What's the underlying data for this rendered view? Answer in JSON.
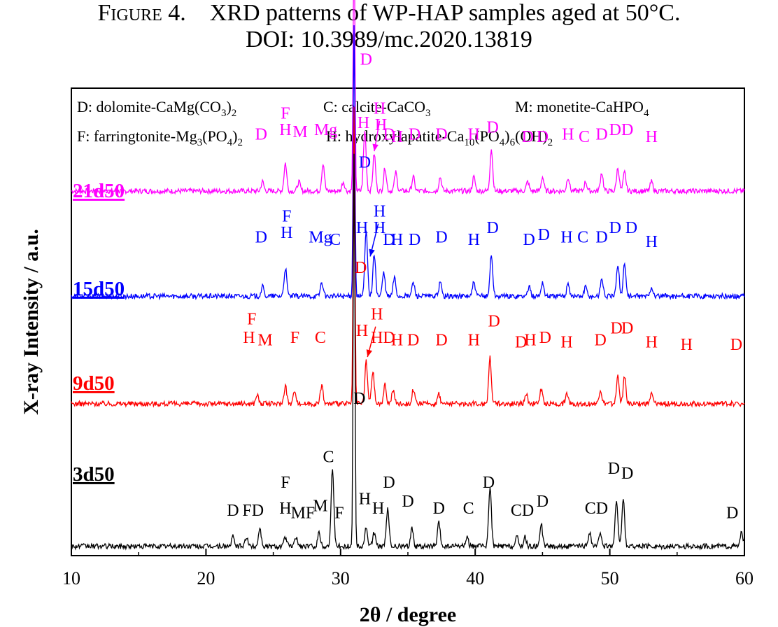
{
  "caption": {
    "figure_label": "Figure 4.",
    "figure_text": "XRD patterns of WP-HAP samples aged at 50°C.",
    "doi": "DOI: 10.3989/mc.2020.13819"
  },
  "chart_data": {
    "type": "line",
    "title": "",
    "xlabel": "2θ / degree",
    "ylabel": "X-ray Intensity / a.u.",
    "xlim": [
      10,
      60
    ],
    "xticks": [
      "10",
      "20",
      "30",
      "40",
      "50",
      "60"
    ],
    "grid": false,
    "legend_lines": [
      [
        {
          "text": "D: dolomite-CaMg(CO",
          "sub": "3",
          "after": ")",
          "sub2": "2"
        },
        {
          "text": "C: calcite-CaCO",
          "sub": "3"
        },
        {
          "text": "M: monetite-CaHPO",
          "sub": "4"
        }
      ],
      [
        {
          "text": "F: farringtonite-Mg",
          "sub": "3",
          "after": "(PO",
          "sub2": "4",
          "after2": ")",
          "sub3": "2"
        },
        {
          "text": "H: hydroxylapatite-Ca",
          "sub": "10",
          "after": "(PO",
          "sub2": "4",
          "after2": ")",
          "sub3": "6",
          "after3": "(OH)",
          "sub4": "2"
        }
      ]
    ],
    "series": [
      {
        "name": "21d50",
        "color": "#ff00ff",
        "baseline": 0.78,
        "peaks": [
          [
            24.2,
            0.02
          ],
          [
            25.9,
            0.06
          ],
          [
            26.9,
            0.02
          ],
          [
            28.7,
            0.06
          ],
          [
            30.2,
            0.02
          ],
          [
            31.0,
            0.55
          ],
          [
            31.8,
            0.13
          ],
          [
            32.5,
            0.08
          ],
          [
            33.3,
            0.05
          ],
          [
            34.1,
            0.04
          ],
          [
            35.4,
            0.03
          ],
          [
            37.4,
            0.03
          ],
          [
            39.9,
            0.03
          ],
          [
            41.2,
            0.09
          ],
          [
            43.9,
            0.02
          ],
          [
            45.0,
            0.03
          ],
          [
            46.9,
            0.03
          ],
          [
            48.2,
            0.02
          ],
          [
            49.4,
            0.04
          ],
          [
            50.6,
            0.05
          ],
          [
            51.1,
            0.04
          ],
          [
            53.1,
            0.02
          ]
        ],
        "labels": [
          {
            "t": "D",
            "x": 24.1,
            "y": 0.89
          },
          {
            "t": "F",
            "x": 25.9,
            "y": 0.935
          },
          {
            "t": "H",
            "x": 25.9,
            "y": 0.9
          },
          {
            "t": "M",
            "x": 27.0,
            "y": 0.895
          },
          {
            "t": "Mg",
            "x": 28.9,
            "y": 0.9
          },
          {
            "t": "D",
            "x": 31.9,
            "y": 1.05
          },
          {
            "t": "H",
            "x": 32.9,
            "y": 0.945
          },
          {
            "t": "H",
            "x": 31.7,
            "y": 0.915
          },
          {
            "t": "H",
            "x": 33.0,
            "y": 0.91
          },
          {
            "t": "D",
            "x": 33.6,
            "y": 0.89
          },
          {
            "t": "H",
            "x": 34.2,
            "y": 0.885
          },
          {
            "t": "D",
            "x": 35.5,
            "y": 0.89
          },
          {
            "t": "D",
            "x": 37.5,
            "y": 0.89
          },
          {
            "t": "H",
            "x": 39.9,
            "y": 0.89
          },
          {
            "t": "D",
            "x": 41.3,
            "y": 0.905
          },
          {
            "t": "D",
            "x": 43.9,
            "y": 0.885
          },
          {
            "t": "D",
            "x": 45.0,
            "y": 0.885
          },
          {
            "t": "H",
            "x": 46.9,
            "y": 0.89
          },
          {
            "t": "C",
            "x": 48.1,
            "y": 0.885
          },
          {
            "t": "D",
            "x": 49.4,
            "y": 0.89
          },
          {
            "t": "D",
            "x": 50.4,
            "y": 0.9
          },
          {
            "t": "D",
            "x": 51.3,
            "y": 0.9
          },
          {
            "t": "H",
            "x": 53.1,
            "y": 0.885
          }
        ],
        "arrow": {
          "x1": 32.9,
          "y1": 0.93,
          "x2": 32.5,
          "y2": 0.865
        }
      },
      {
        "name": "15d50",
        "color": "#0000ff",
        "baseline": 0.555,
        "peaks": [
          [
            24.2,
            0.02
          ],
          [
            25.9,
            0.06
          ],
          [
            28.6,
            0.03
          ],
          [
            31.0,
            0.58
          ],
          [
            31.9,
            0.14
          ],
          [
            32.5,
            0.09
          ],
          [
            33.2,
            0.05
          ],
          [
            34.0,
            0.04
          ],
          [
            35.4,
            0.03
          ],
          [
            37.4,
            0.03
          ],
          [
            39.9,
            0.03
          ],
          [
            41.2,
            0.09
          ],
          [
            44.0,
            0.02
          ],
          [
            45.0,
            0.03
          ],
          [
            46.9,
            0.03
          ],
          [
            48.2,
            0.02
          ],
          [
            49.4,
            0.04
          ],
          [
            50.6,
            0.07
          ],
          [
            51.1,
            0.07
          ],
          [
            53.1,
            0.02
          ]
        ],
        "labels": [
          {
            "t": "D",
            "x": 24.1,
            "y": 0.67
          },
          {
            "t": "F",
            "x": 26.0,
            "y": 0.715
          },
          {
            "t": "H",
            "x": 26.0,
            "y": 0.68
          },
          {
            "t": "Mg",
            "x": 28.5,
            "y": 0.67
          },
          {
            "t": "C",
            "x": 29.6,
            "y": 0.665
          },
          {
            "t": "D",
            "x": 31.8,
            "y": 0.83
          },
          {
            "t": "H",
            "x": 32.9,
            "y": 0.725
          },
          {
            "t": "H",
            "x": 31.6,
            "y": 0.69
          },
          {
            "t": "H",
            "x": 32.9,
            "y": 0.69
          },
          {
            "t": "D",
            "x": 33.6,
            "y": 0.665
          },
          {
            "t": "H",
            "x": 34.2,
            "y": 0.665
          },
          {
            "t": "D",
            "x": 35.5,
            "y": 0.665
          },
          {
            "t": "D",
            "x": 37.5,
            "y": 0.67
          },
          {
            "t": "H",
            "x": 39.9,
            "y": 0.665
          },
          {
            "t": "D",
            "x": 41.3,
            "y": 0.69
          },
          {
            "t": "D",
            "x": 44.0,
            "y": 0.665
          },
          {
            "t": "D",
            "x": 45.1,
            "y": 0.675
          },
          {
            "t": "H",
            "x": 46.8,
            "y": 0.67
          },
          {
            "t": "C",
            "x": 48.0,
            "y": 0.67
          },
          {
            "t": "D",
            "x": 49.4,
            "y": 0.67
          },
          {
            "t": "D",
            "x": 50.4,
            "y": 0.69
          },
          {
            "t": "D",
            "x": 51.6,
            "y": 0.69
          },
          {
            "t": "H",
            "x": 53.1,
            "y": 0.66
          }
        ],
        "arrow": {
          "x1": 32.8,
          "y1": 0.71,
          "x2": 32.2,
          "y2": 0.64
        }
      },
      {
        "name": "9d50",
        "color": "#ff0000",
        "baseline": 0.325,
        "peaks": [
          [
            23.8,
            0.02
          ],
          [
            25.9,
            0.04
          ],
          [
            26.6,
            0.03
          ],
          [
            28.6,
            0.04
          ],
          [
            31.0,
            0.63
          ],
          [
            31.9,
            0.09
          ],
          [
            32.4,
            0.07
          ],
          [
            33.3,
            0.04
          ],
          [
            33.9,
            0.03
          ],
          [
            35.4,
            0.03
          ],
          [
            37.3,
            0.02
          ],
          [
            41.1,
            0.1
          ],
          [
            43.8,
            0.02
          ],
          [
            44.9,
            0.03
          ],
          [
            46.8,
            0.02
          ],
          [
            49.3,
            0.03
          ],
          [
            50.6,
            0.06
          ],
          [
            51.1,
            0.06
          ],
          [
            53.1,
            0.02
          ]
        ],
        "labels": [
          {
            "t": "F",
            "x": 23.4,
            "y": 0.495
          },
          {
            "t": "H",
            "x": 23.2,
            "y": 0.455
          },
          {
            "t": "M",
            "x": 24.4,
            "y": 0.45
          },
          {
            "t": "F",
            "x": 26.6,
            "y": 0.455
          },
          {
            "t": "C",
            "x": 28.5,
            "y": 0.455
          },
          {
            "t": "D",
            "x": 31.5,
            "y": 0.605
          },
          {
            "t": "H",
            "x": 32.7,
            "y": 0.505
          },
          {
            "t": "H",
            "x": 31.6,
            "y": 0.47
          },
          {
            "t": "H",
            "x": 32.7,
            "y": 0.455
          },
          {
            "t": "D",
            "x": 33.6,
            "y": 0.455
          },
          {
            "t": "H",
            "x": 34.2,
            "y": 0.45
          },
          {
            "t": "D",
            "x": 35.4,
            "y": 0.45
          },
          {
            "t": "D",
            "x": 37.5,
            "y": 0.45
          },
          {
            "t": "H",
            "x": 39.9,
            "y": 0.45
          },
          {
            "t": "D",
            "x": 41.4,
            "y": 0.49
          },
          {
            "t": "D",
            "x": 43.4,
            "y": 0.445
          },
          {
            "t": "H",
            "x": 44.1,
            "y": 0.45
          },
          {
            "t": "D",
            "x": 45.2,
            "y": 0.455
          },
          {
            "t": "H",
            "x": 46.8,
            "y": 0.445
          },
          {
            "t": "D",
            "x": 49.3,
            "y": 0.45
          },
          {
            "t": "D",
            "x": 50.5,
            "y": 0.475
          },
          {
            "t": "D",
            "x": 51.3,
            "y": 0.475
          },
          {
            "t": "H",
            "x": 53.1,
            "y": 0.445
          },
          {
            "t": "H",
            "x": 55.7,
            "y": 0.44
          },
          {
            "t": "D",
            "x": 59.4,
            "y": 0.44
          }
        ],
        "arrow": {
          "x1": 32.6,
          "y1": 0.49,
          "x2": 32.0,
          "y2": 0.425
        }
      },
      {
        "name": "3d50",
        "color": "#000000",
        "baseline": 0.02,
        "peaks": [
          [
            22.0,
            0.02
          ],
          [
            23.0,
            0.02
          ],
          [
            24.0,
            0.04
          ],
          [
            25.9,
            0.02
          ],
          [
            26.7,
            0.02
          ],
          [
            28.4,
            0.03
          ],
          [
            29.4,
            0.17
          ],
          [
            31.0,
            0.84
          ],
          [
            31.9,
            0.04
          ],
          [
            32.5,
            0.03
          ],
          [
            33.5,
            0.08
          ],
          [
            35.3,
            0.04
          ],
          [
            37.3,
            0.05
          ],
          [
            39.4,
            0.02
          ],
          [
            41.1,
            0.13
          ],
          [
            43.1,
            0.02
          ],
          [
            43.7,
            0.02
          ],
          [
            44.9,
            0.05
          ],
          [
            48.5,
            0.03
          ],
          [
            49.3,
            0.03
          ],
          [
            50.5,
            0.1
          ],
          [
            51.0,
            0.1
          ],
          [
            59.8,
            0.03
          ]
        ],
        "labels": [
          {
            "t": "D",
            "x": 22.0,
            "y": 0.085
          },
          {
            "t": "FD",
            "x": 23.5,
            "y": 0.085
          },
          {
            "t": "F",
            "x": 25.9,
            "y": 0.145
          },
          {
            "t": "H",
            "x": 25.9,
            "y": 0.09
          },
          {
            "t": "MF",
            "x": 27.2,
            "y": 0.08
          },
          {
            "t": "M",
            "x": 28.5,
            "y": 0.095
          },
          {
            "t": "C",
            "x": 29.1,
            "y": 0.2
          },
          {
            "t": "F",
            "x": 29.9,
            "y": 0.08
          },
          {
            "t": "D",
            "x": 31.4,
            "y": 0.325
          },
          {
            "t": "H",
            "x": 31.8,
            "y": 0.11
          },
          {
            "t": "H",
            "x": 32.8,
            "y": 0.09
          },
          {
            "t": "D",
            "x": 33.6,
            "y": 0.145
          },
          {
            "t": "D",
            "x": 35.0,
            "y": 0.105
          },
          {
            "t": "D",
            "x": 37.3,
            "y": 0.09
          },
          {
            "t": "C",
            "x": 39.5,
            "y": 0.09
          },
          {
            "t": "D",
            "x": 41.0,
            "y": 0.145
          },
          {
            "t": "CD",
            "x": 43.5,
            "y": 0.085
          },
          {
            "t": "D",
            "x": 45.0,
            "y": 0.105
          },
          {
            "t": "CD",
            "x": 49.0,
            "y": 0.09
          },
          {
            "t": "D",
            "x": 50.3,
            "y": 0.175
          },
          {
            "t": "D",
            "x": 51.3,
            "y": 0.165
          },
          {
            "t": "D",
            "x": 59.1,
            "y": 0.08
          }
        ]
      }
    ]
  }
}
